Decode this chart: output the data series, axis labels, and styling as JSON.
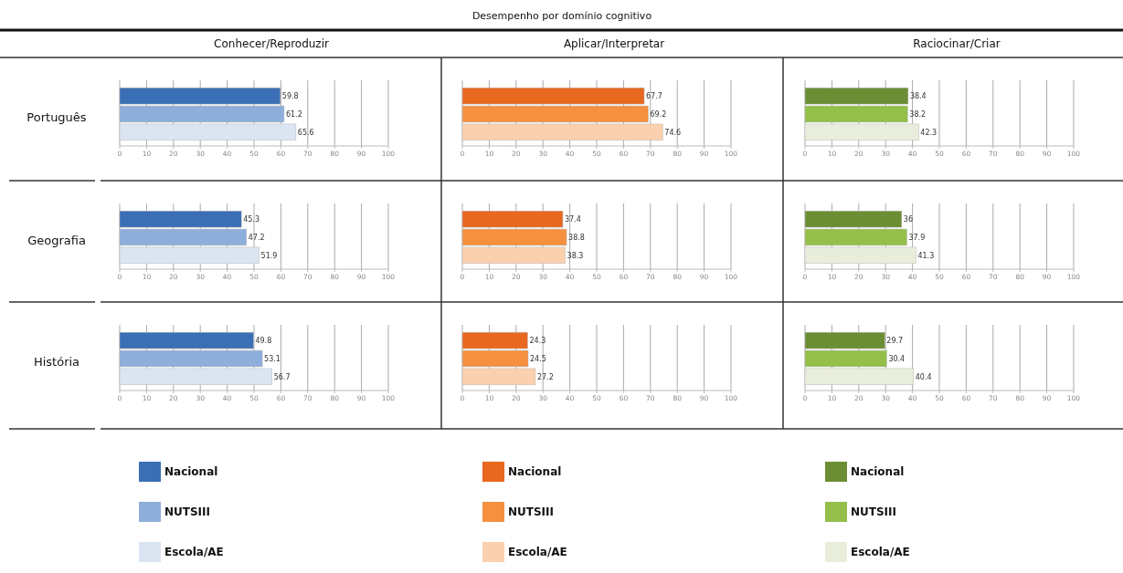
{
  "chart_data": [
    {
      "type": "bar",
      "orientation": "horizontal",
      "annotations": [
        "Desempenho por domínio cognitivo"
      ],
      "title": "Conhecer/Reproduzir",
      "ylabel": "Português",
      "categories": [
        null
      ],
      "xlim": [
        0,
        100
      ],
      "xticks": [
        0,
        10,
        20,
        30,
        40,
        50,
        60,
        70,
        80,
        90,
        100
      ],
      "grid": "x",
      "data_labels": true,
      "series": [
        {
          "color": "#3a6fb5",
          "values": [
            59.8
          ]
        },
        {
          "color": "#8eaedb",
          "values": [
            61.2
          ]
        },
        {
          "color": "#dbe5f2",
          "values": [
            65.6
          ]
        }
      ]
    },
    {
      "type": "bar",
      "orientation": "horizontal",
      "title": "Aplicar/Interpretar",
      "categories": [
        null
      ],
      "xlim": [
        0,
        100
      ],
      "xticks": [
        0,
        10,
        20,
        30,
        40,
        50,
        60,
        70,
        80,
        90,
        100
      ],
      "grid": "x",
      "data_labels": true,
      "series": [
        {
          "color": "#e8681f",
          "values": [
            67.7
          ]
        },
        {
          "color": "#f5903f",
          "values": [
            69.2
          ]
        },
        {
          "color": "#fbd0ae",
          "values": [
            74.6
          ]
        }
      ]
    },
    {
      "type": "bar",
      "orientation": "horizontal",
      "title": "Raciocinar/Criar",
      "categories": [
        null
      ],
      "xlim": [
        0,
        100
      ],
      "xticks": [
        0,
        10,
        20,
        30,
        40,
        50,
        60,
        70,
        80,
        90,
        100
      ],
      "grid": "x",
      "data_labels": true,
      "series": [
        {
          "color": "#6b8e35",
          "values": [
            38.4
          ]
        },
        {
          "color": "#93bf4a",
          "values": [
            38.2
          ]
        },
        {
          "color": "#e9eedc",
          "values": [
            42.3
          ]
        }
      ]
    },
    {
      "type": "bar",
      "orientation": "horizontal",
      "ylabel": "Geografia",
      "categories": [
        null
      ],
      "xlim": [
        0,
        100
      ],
      "xticks": [
        0,
        10,
        20,
        30,
        40,
        50,
        60,
        70,
        80,
        90,
        100
      ],
      "grid": "x",
      "data_labels": true,
      "series": [
        {
          "color": "#3a6fb5",
          "values": [
            45.3
          ]
        },
        {
          "color": "#8eaedb",
          "values": [
            47.2
          ]
        },
        {
          "color": "#dbe5f2",
          "values": [
            51.9
          ]
        }
      ]
    },
    {
      "type": "bar",
      "orientation": "horizontal",
      "categories": [
        null
      ],
      "xlim": [
        0,
        100
      ],
      "xticks": [
        0,
        10,
        20,
        30,
        40,
        50,
        60,
        70,
        80,
        90,
        100
      ],
      "grid": "x",
      "data_labels": true,
      "series": [
        {
          "color": "#e8681f",
          "values": [
            37.4
          ]
        },
        {
          "color": "#f5903f",
          "values": [
            38.8
          ]
        },
        {
          "color": "#fbd0ae",
          "values": [
            38.3
          ]
        }
      ]
    },
    {
      "type": "bar",
      "orientation": "horizontal",
      "categories": [
        null
      ],
      "xlim": [
        0,
        100
      ],
      "xticks": [
        0,
        10,
        20,
        30,
        40,
        50,
        60,
        70,
        80,
        90,
        100
      ],
      "grid": "x",
      "data_labels": true,
      "series": [
        {
          "color": "#6b8e35",
          "values": [
            36
          ]
        },
        {
          "color": "#93bf4a",
          "values": [
            37.9
          ]
        },
        {
          "color": "#e9eedc",
          "values": [
            41.3
          ]
        }
      ]
    },
    {
      "type": "bar",
      "orientation": "horizontal",
      "ylabel": "História",
      "categories": [
        null
      ],
      "xlim": [
        0,
        100
      ],
      "xticks": [
        0,
        10,
        20,
        30,
        40,
        50,
        60,
        70,
        80,
        90,
        100
      ],
      "grid": "x",
      "data_labels": true,
      "legend": "bottom",
      "series": [
        {
          "name": "Nacional",
          "color": "#3a6fb5",
          "values": [
            49.8
          ]
        },
        {
          "name": "NUTSIII",
          "color": "#8eaedb",
          "values": [
            53.1
          ]
        },
        {
          "name": "Escola/AE",
          "color": "#dbe5f2",
          "values": [
            56.7
          ]
        }
      ]
    },
    {
      "type": "bar",
      "orientation": "horizontal",
      "categories": [
        null
      ],
      "xlim": [
        0,
        100
      ],
      "xticks": [
        0,
        10,
        20,
        30,
        40,
        50,
        60,
        70,
        80,
        90,
        100
      ],
      "grid": "x",
      "data_labels": true,
      "legend": "bottom",
      "series": [
        {
          "name": "Nacional",
          "color": "#e8681f",
          "values": [
            24.3
          ]
        },
        {
          "name": "NUTSIII",
          "color": "#f5903f",
          "values": [
            24.5
          ]
        },
        {
          "name": "Escola/AE",
          "color": "#fbd0ae",
          "values": [
            27.2
          ]
        }
      ]
    },
    {
      "type": "bar",
      "orientation": "horizontal",
      "categories": [
        null
      ],
      "xlim": [
        0,
        100
      ],
      "xticks": [
        0,
        10,
        20,
        30,
        40,
        50,
        60,
        70,
        80,
        90,
        100
      ],
      "grid": "x",
      "data_labels": true,
      "legend": "bottom",
      "series": [
        {
          "name": "Nacional",
          "color": "#6b8e35",
          "values": [
            29.7
          ]
        },
        {
          "name": "NUTSIII",
          "color": "#93bf4a",
          "values": [
            30.4
          ]
        },
        {
          "name": "Escola/AE",
          "color": "#e9eedc",
          "values": [
            40.4
          ]
        }
      ]
    }
  ]
}
